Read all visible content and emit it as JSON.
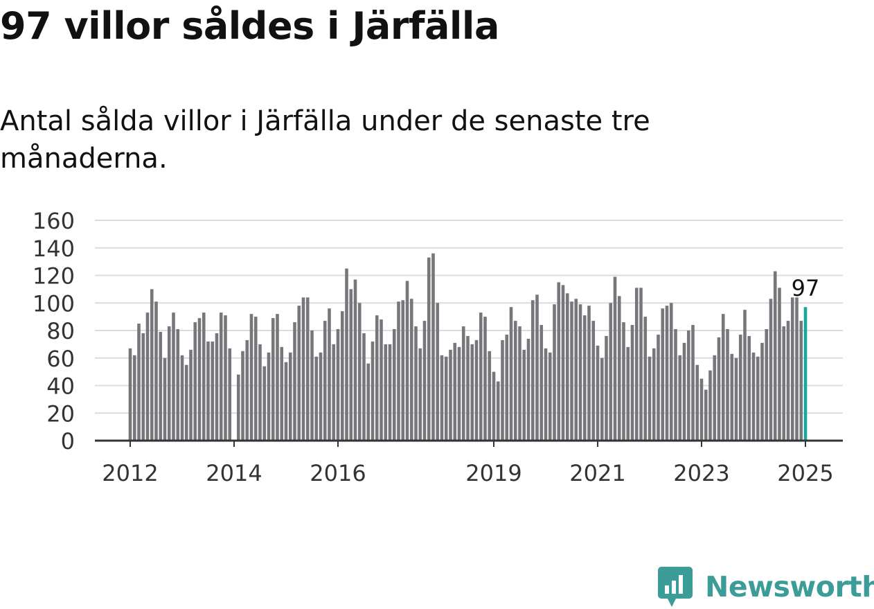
{
  "header": {
    "title": "97 villor såldes i Järfälla",
    "subtitle": "Antal sålda villor i Järfälla under de senaste tre månaderna."
  },
  "brand": {
    "name": "Newsworthy",
    "logo_icon": "bar-chart-speech-bubble-icon"
  },
  "colors": {
    "bar": "#77767b",
    "highlight": "#1aa6a0",
    "grid": "#dcdcdc",
    "axis": "#333333",
    "brand": "#3b9c98"
  },
  "chart_data": {
    "type": "bar",
    "title": "97 villor såldes i Järfälla",
    "subtitle": "Antal sålda villor i Järfälla under de senaste tre månaderna.",
    "xlabel": "",
    "ylabel": "",
    "ylim": [
      0,
      160
    ],
    "yticks": [
      "0",
      "20",
      "40",
      "60",
      "80",
      "100",
      "120",
      "140",
      "160"
    ],
    "xticks": [
      {
        "label": "2012",
        "index": 0
      },
      {
        "label": "2014",
        "index": 24
      },
      {
        "label": "2016",
        "index": 48
      },
      {
        "label": "2019",
        "index": 84
      },
      {
        "label": "2021",
        "index": 108
      },
      {
        "label": "2023",
        "index": 132
      },
      {
        "label": "2025",
        "index": 156
      }
    ],
    "grid": true,
    "highlight": {
      "index": 156,
      "label": "97"
    },
    "values": [
      67,
      62,
      85,
      78,
      93,
      110,
      101,
      79,
      60,
      83,
      93,
      81,
      62,
      55,
      66,
      86,
      89,
      93,
      72,
      72,
      78,
      93,
      91,
      67,
      0,
      48,
      65,
      73,
      92,
      90,
      70,
      54,
      64,
      89,
      92,
      68,
      57,
      64,
      86,
      98,
      104,
      104,
      80,
      61,
      64,
      87,
      96,
      70,
      81,
      94,
      125,
      110,
      117,
      100,
      78,
      56,
      72,
      91,
      88,
      70,
      70,
      81,
      101,
      102,
      116,
      103,
      83,
      67,
      87,
      133,
      136,
      100,
      62,
      61,
      66,
      71,
      68,
      83,
      76,
      70,
      73,
      93,
      90,
      65,
      50,
      43,
      73,
      77,
      97,
      87,
      83,
      66,
      74,
      102,
      106,
      84,
      67,
      64,
      99,
      115,
      113,
      107,
      101,
      103,
      99,
      91,
      98,
      87,
      69,
      60,
      76,
      100,
      119,
      105,
      86,
      68,
      84,
      111,
      111,
      90,
      61,
      67,
      77,
      96,
      98,
      100,
      81,
      62,
      71,
      80,
      84,
      55,
      45,
      37,
      51,
      62,
      75,
      92,
      81,
      63,
      60,
      77,
      95,
      76,
      64,
      61,
      71,
      81,
      103,
      123,
      111,
      83,
      87,
      104,
      104,
      87,
      97
    ]
  }
}
